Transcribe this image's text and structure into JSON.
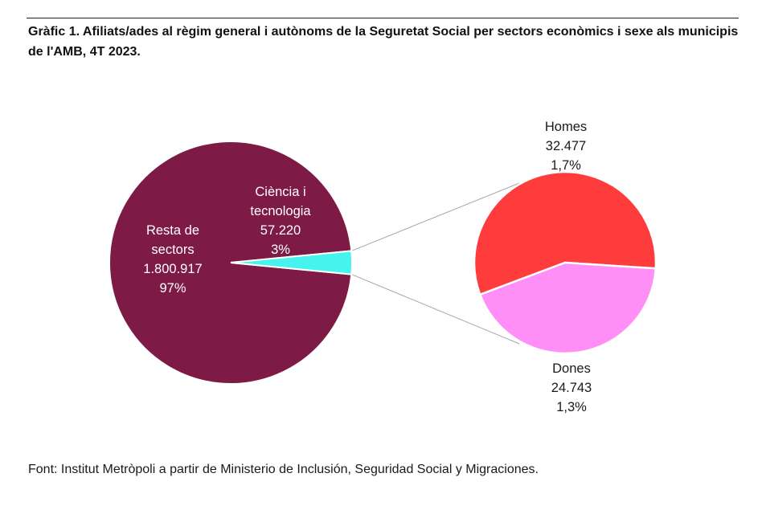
{
  "title": "Gràfic 1. Afiliats/ades al règim general i autònoms de la Seguretat Social per sectors econòmics i sexe als municipis de l'AMB, 4T 2023.",
  "source": "Font: Institut Metròpoli a partir de Ministerio de Inclusión, Seguridad Social y Migraciones.",
  "chart_data": [
    {
      "type": "pie",
      "slices": [
        {
          "label": [
            "Resta de",
            "sectors"
          ],
          "value": 1800917,
          "value_label": "1.800.917",
          "pct_label": "97%",
          "color": "#7d1a45"
        },
        {
          "label": [
            "Ciència i",
            "tecnologia"
          ],
          "value": 57220,
          "value_label": "57.220",
          "pct_label": "3%",
          "color": "#46f3ee"
        }
      ]
    },
    {
      "type": "pie",
      "slices": [
        {
          "label": [
            "Homes"
          ],
          "value": 32477,
          "value_label": "32.477",
          "pct_label": "1,7%",
          "color": "#ff3c3c"
        },
        {
          "label": [
            "Dones"
          ],
          "value": 24743,
          "value_label": "24.743",
          "pct_label": "1,3%",
          "color": "#ff8ef7"
        }
      ]
    }
  ]
}
